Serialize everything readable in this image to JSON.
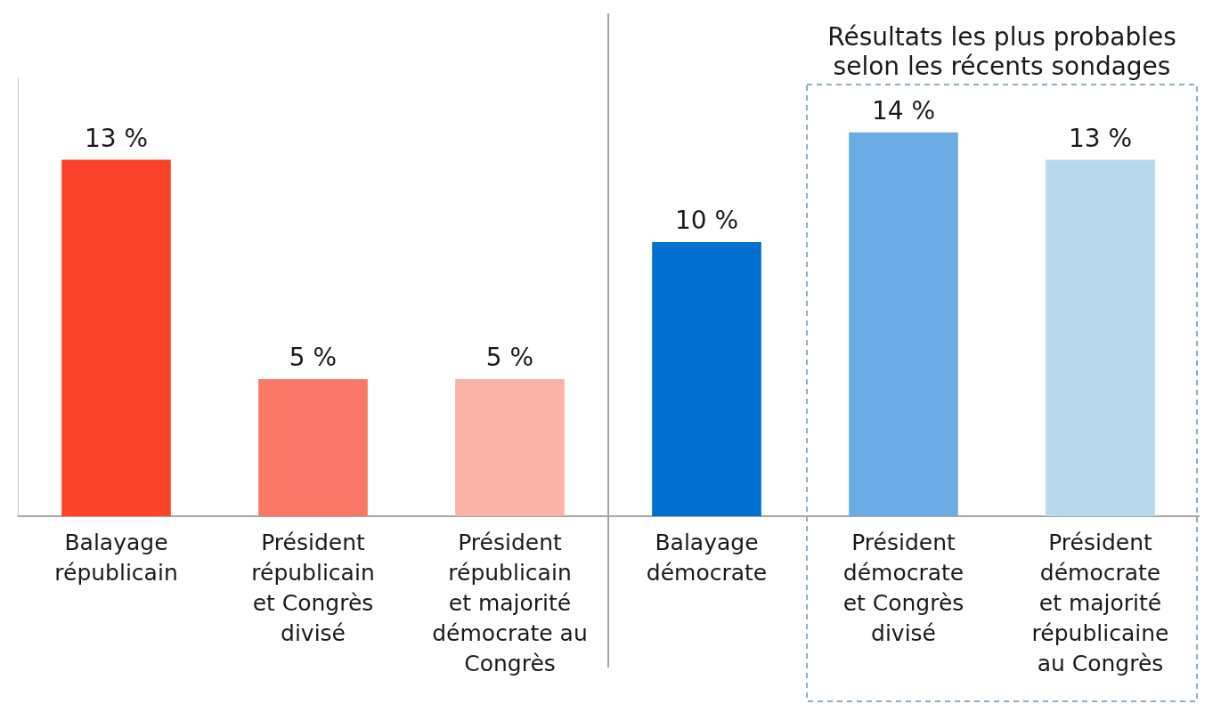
{
  "chart_data": {
    "type": "bar",
    "categories": [
      [
        "Balayage",
        "républicain"
      ],
      [
        "Président",
        "républicain",
        "et Congrès",
        "divisé"
      ],
      [
        "Président",
        "républicain",
        "et majorité",
        "démocrate au",
        "Congrès"
      ],
      [
        "Balayage",
        "démocrate"
      ],
      [
        "Président",
        "démocrate",
        "et Congrès",
        "divisé"
      ],
      [
        "Président",
        "démocrate",
        "et majorité",
        "républicaine",
        "au Congrès"
      ]
    ],
    "values": [
      13,
      5,
      5,
      10,
      14,
      13
    ],
    "value_labels": [
      "13 %",
      "5 %",
      "5 %",
      "10 %",
      "14 %",
      "13 %"
    ],
    "colors": [
      "#f94229",
      "#fa7867",
      "#fbb3a8",
      "#0070d0",
      "#6cace4",
      "#b8d8ee"
    ],
    "data_labels": true,
    "ylim": [
      0,
      16
    ],
    "tick_labels": "x",
    "grid": false,
    "annotation": {
      "text": [
        "Résultats les plus probables",
        "selon les récents sondages"
      ],
      "categories": [
        [
          "Président",
          "démocrate",
          "et Congrès",
          "divisé"
        ],
        [
          "Président",
          "démocrate",
          "et majorité",
          "républicaine",
          "au Congrès"
        ]
      ]
    }
  }
}
